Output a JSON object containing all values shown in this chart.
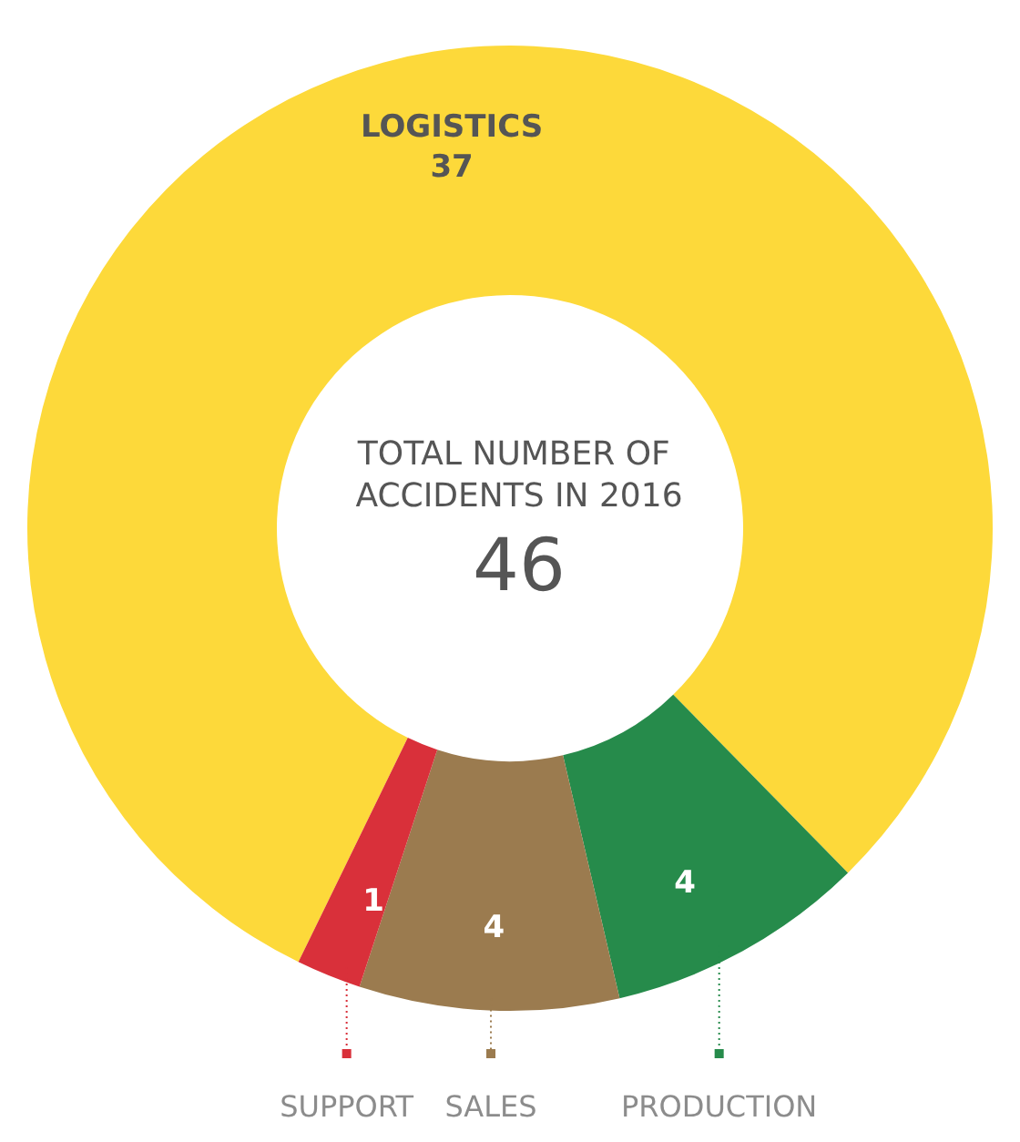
{
  "chart_data": {
    "type": "donut",
    "title": "TOTAL NUMBER OF ACCIDENTS IN 2016",
    "subtitle": "46",
    "categories": [
      "LOGISTICS",
      "PRODUCTION",
      "SALES",
      "SUPPORT"
    ],
    "values": [
      37,
      4,
      4,
      1
    ],
    "colors": [
      "#fdd93a",
      "#268b4b",
      "#9b7b4f",
      "#d9303a"
    ],
    "data_labels": true,
    "legend": "bottom"
  }
}
